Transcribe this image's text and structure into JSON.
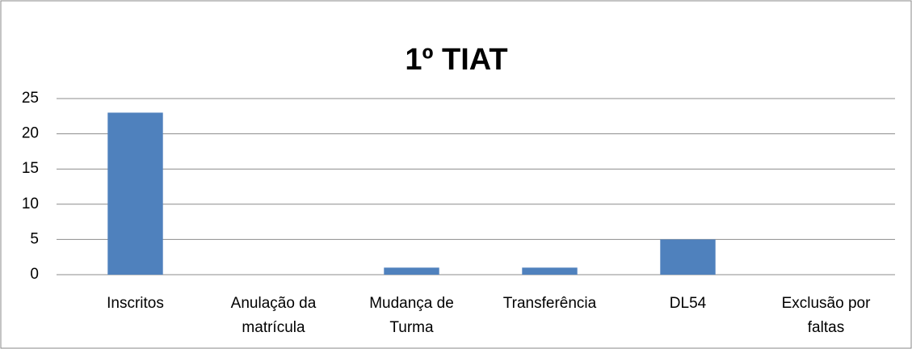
{
  "chart_data": {
    "type": "bar",
    "title": "1º TIAT",
    "categories": [
      "Inscritos",
      "Anulação da\nmatrícula",
      "Mudança de\nTurma",
      "Transferência",
      "DL54",
      "Exclusão por\nfaltas"
    ],
    "values": [
      23,
      0,
      1,
      1,
      5,
      0
    ],
    "color": "#4f81bd",
    "ylim": [
      0,
      25
    ],
    "yticks": [
      0,
      5,
      10,
      15,
      20,
      25
    ],
    "grid": true
  }
}
